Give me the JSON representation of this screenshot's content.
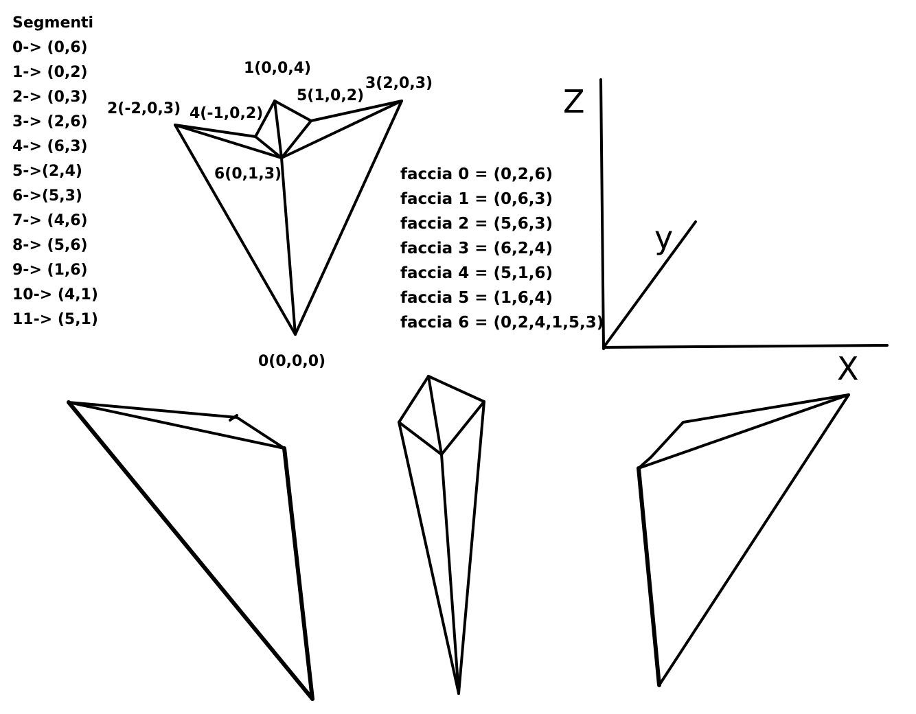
{
  "segments": {
    "title": "Segmenti",
    "items": [
      "0-> (0,6)",
      "1-> (0,2)",
      "2-> (0,3)",
      "3-> (2,6)",
      "4-> (6,3)",
      "5->(2,4)",
      "6->(5,3)",
      "7-> (4,6)",
      "8-> (5,6)",
      "9-> (1,6)",
      "10-> (4,1)",
      "11-> (5,1)"
    ]
  },
  "vertices": {
    "v0": "0(0,0,0)",
    "v1": "1(0,0,4)",
    "v2": "2(-2,0,3)",
    "v3": "3(2,0,3)",
    "v4": "4(-1,0,2)",
    "v5": "5(1,0,2)",
    "v6": "6(0,1,3)"
  },
  "faces": [
    "faccia 0 = (0,2,6)",
    "faccia 1 = (0,6,3)",
    "faccia 2 = (5,6,3)",
    "faccia 3 = (6,2,4)",
    "faccia 4 = (5,1,6)",
    "faccia 5 = (1,6,4)",
    "faccia 6 = (0,2,4,1,5,3)"
  ],
  "axes": {
    "x": "X",
    "y": "y",
    "z": "Z"
  },
  "colors": {
    "ink": "#000000",
    "background": "#ffffff"
  }
}
